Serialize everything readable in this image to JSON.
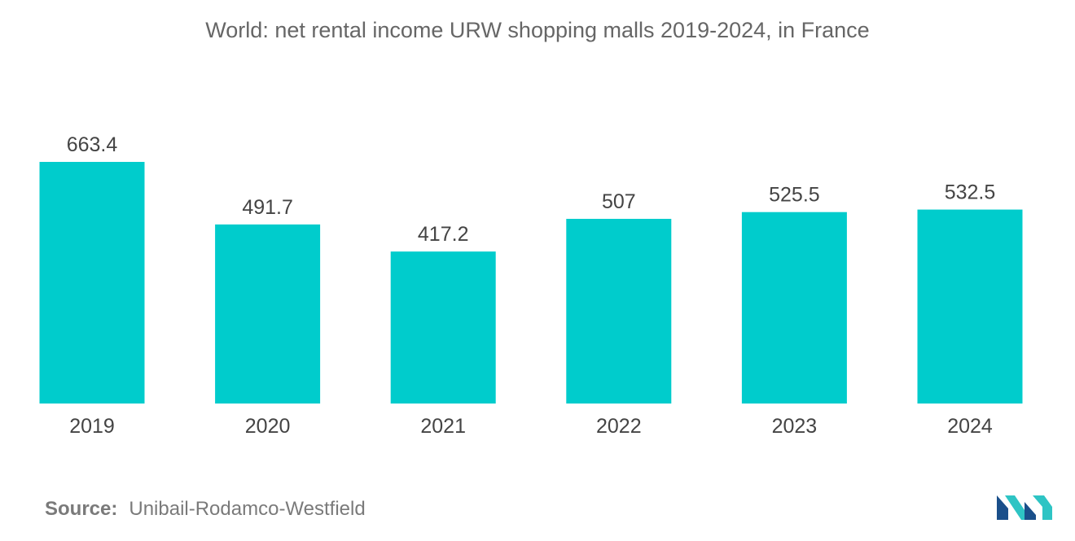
{
  "chart_data": {
    "type": "bar",
    "title": "World: net rental income URW shopping malls 2019-2024, in France",
    "categories": [
      "2019",
      "2020",
      "2021",
      "2022",
      "2023",
      "2024"
    ],
    "values": [
      663.4,
      491.7,
      417.2,
      507,
      525.5,
      532.5
    ],
    "value_labels": [
      "663.4",
      "491.7",
      "417.2",
      "507",
      "525.5",
      "532.5"
    ],
    "xlabel": "",
    "ylabel": "",
    "ylim": [
      0,
      663.4
    ],
    "grid": false,
    "legend": "none"
  },
  "source": {
    "label": "Source:",
    "text": "Unibail-Rodamco-Westfield"
  },
  "colors": {
    "bar": "#00CCCC",
    "title": "#666666",
    "labels": "#444444",
    "logo_dark": "#1a4f8a",
    "logo_light": "#2ec4c4"
  },
  "logo": {
    "icon": "mordor-intelligence-logo-icon"
  }
}
